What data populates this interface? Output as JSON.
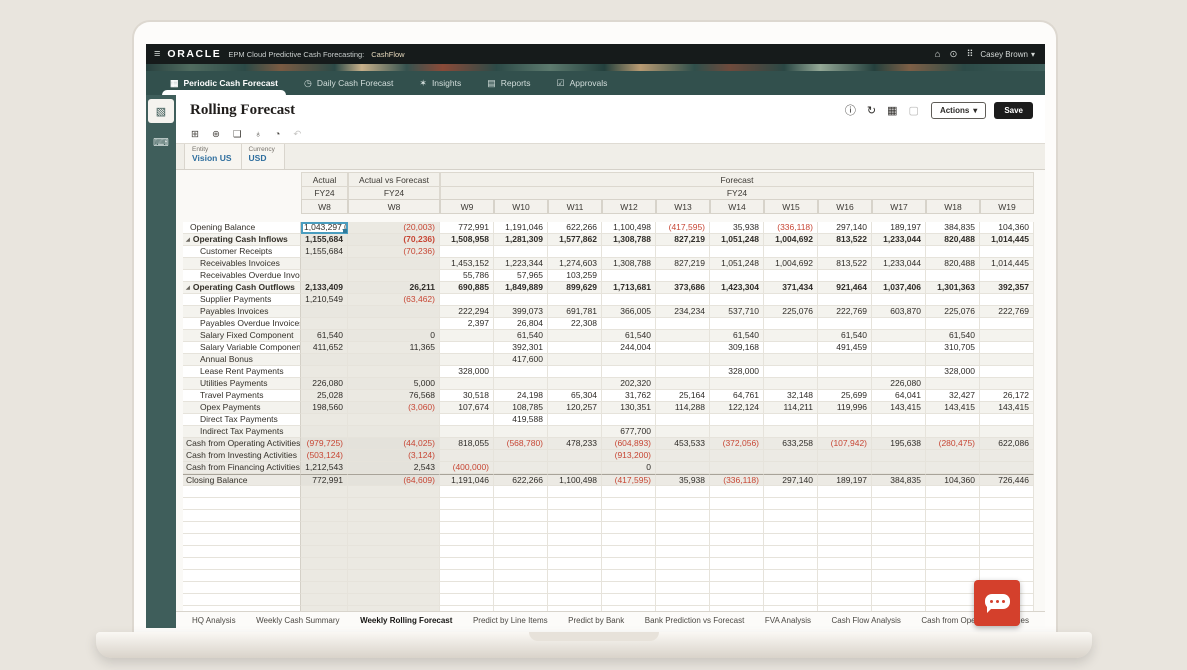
{
  "header": {
    "brand": "ORACLE",
    "product": "EPM Cloud Predictive Cash Forecasting:",
    "app": "CashFlow",
    "user": "Casey Brown",
    "icons": [
      {
        "name": "home-icon",
        "glyph": "⌂"
      },
      {
        "name": "assistant-icon",
        "glyph": "⊙"
      },
      {
        "name": "apps-waffle-icon",
        "glyph": "⠿"
      }
    ]
  },
  "icons": {
    "menu": "≡",
    "caret": "▾"
  },
  "nav": {
    "items": [
      {
        "label": "Periodic Cash Forecast",
        "icon": "▦",
        "icon_name": "periodic-cash-forecast-icon",
        "active": true
      },
      {
        "label": "Daily Cash Forecast",
        "icon": "◷",
        "icon_name": "daily-cash-forecast-icon",
        "active": false
      },
      {
        "label": "Insights",
        "icon": "✶",
        "icon_name": "insights-icon",
        "active": false
      },
      {
        "label": "Reports",
        "icon": "▤",
        "icon_name": "reports-icon",
        "active": false
      },
      {
        "label": "Approvals",
        "icon": "☑",
        "icon_name": "approvals-icon",
        "active": false
      }
    ]
  },
  "rail": {
    "items": [
      {
        "name": "forecast-workspace-icon",
        "icon": "▧",
        "active": true
      },
      {
        "name": "monitor-icon",
        "icon": "⌨",
        "active": false
      }
    ]
  },
  "page": {
    "title": "Rolling Forecast",
    "actions_label": "Actions",
    "save_label": "Save",
    "action_icons": [
      {
        "name": "info-icon",
        "glyph": "ⓘ",
        "disabled": false
      },
      {
        "name": "refresh-icon",
        "glyph": "↻",
        "disabled": false
      },
      {
        "name": "grid-inspect-icon",
        "glyph": "▦",
        "disabled": false
      },
      {
        "name": "detach-icon",
        "glyph": "▢",
        "disabled": true
      }
    ]
  },
  "toolbar": {
    "icons": [
      {
        "name": "grid-layout-icon",
        "glyph": "⊞",
        "disabled": false
      },
      {
        "name": "globe-icon",
        "glyph": "⊛",
        "disabled": false
      },
      {
        "name": "comment-icon",
        "glyph": "❑",
        "disabled": false
      },
      {
        "name": "sitemap-icon",
        "glyph": "♁",
        "disabled": false
      },
      {
        "name": "history-icon",
        "glyph": "◔",
        "disabled": false
      },
      {
        "name": "undo-icon",
        "glyph": "↶",
        "disabled": true
      }
    ]
  },
  "pov": {
    "entity_label": "Entity",
    "entity_value": "Vision US",
    "currency_label": "Currency",
    "currency_value": "USD"
  },
  "grid": {
    "groups": [
      {
        "label": "Actual",
        "span": 1
      },
      {
        "label": "Actual vs Forecast",
        "span": 1
      },
      {
        "label": "Forecast",
        "span": 11
      }
    ],
    "year": "FY24",
    "weeks": [
      "W8",
      "W8",
      "W9",
      "W10",
      "W11",
      "W12",
      "W13",
      "W14",
      "W15",
      "W16",
      "W17",
      "W18",
      "W19"
    ],
    "selected": {
      "row": 0,
      "col": 0
    },
    "empty_rows": 11,
    "rows": [
      {
        "label": "Opening Balance",
        "type": "normal",
        "values": [
          "1,043,297.0",
          "(20,003)",
          "772,991",
          "1,191,046",
          "622,266",
          "1,100,498",
          "(417,595)",
          "35,938",
          "(336,118)",
          "297,140",
          "189,197",
          "384,835",
          "104,360"
        ]
      },
      {
        "label": "Operating Cash Inflows",
        "type": "parent",
        "values": [
          "1,155,684",
          "(70,236)",
          "1,508,958",
          "1,281,309",
          "1,577,862",
          "1,308,788",
          "827,219",
          "1,051,248",
          "1,004,692",
          "813,522",
          "1,233,044",
          "820,488",
          "1,014,445"
        ]
      },
      {
        "label": "Customer Receipts",
        "type": "child",
        "values": [
          "1,155,684",
          "(70,236)",
          "",
          "",
          "",
          "",
          "",
          "",
          "",
          "",
          "",
          "",
          ""
        ]
      },
      {
        "label": "Receivables Invoices",
        "type": "child",
        "values": [
          "",
          "",
          "1,453,152",
          "1,223,344",
          "1,274,603",
          "1,308,788",
          "827,219",
          "1,051,248",
          "1,004,692",
          "813,522",
          "1,233,044",
          "820,488",
          "1,014,445"
        ]
      },
      {
        "label": "Receivables Overdue Invoices",
        "type": "child",
        "values": [
          "",
          "",
          "55,786",
          "57,965",
          "103,259",
          "",
          "",
          "",
          "",
          "",
          "",
          "",
          ""
        ]
      },
      {
        "label": "Operating Cash Outflows",
        "type": "parent",
        "values": [
          "2,133,409",
          "26,211",
          "690,885",
          "1,849,889",
          "899,629",
          "1,713,681",
          "373,686",
          "1,423,304",
          "371,434",
          "921,464",
          "1,037,406",
          "1,301,363",
          "392,357"
        ]
      },
      {
        "label": "Supplier Payments",
        "type": "child",
        "values": [
          "1,210,549",
          "(63,462)",
          "",
          "",
          "",
          "",
          "",
          "",
          "",
          "",
          "",
          "",
          ""
        ]
      },
      {
        "label": "Payables Invoices",
        "type": "child",
        "values": [
          "",
          "",
          "222,294",
          "399,073",
          "691,781",
          "366,005",
          "234,234",
          "537,710",
          "225,076",
          "222,769",
          "603,870",
          "225,076",
          "222,769"
        ]
      },
      {
        "label": "Payables Overdue Invoices",
        "type": "child",
        "values": [
          "",
          "",
          "2,397",
          "26,804",
          "22,308",
          "",
          "",
          "",
          "",
          "",
          "",
          "",
          ""
        ]
      },
      {
        "label": "Salary Fixed Component",
        "type": "child",
        "values": [
          "61,540",
          "0",
          "",
          "61,540",
          "",
          "61,540",
          "",
          "61,540",
          "",
          "61,540",
          "",
          "61,540",
          ""
        ]
      },
      {
        "label": "Salary Variable Component",
        "type": "child",
        "values": [
          "411,652",
          "11,365",
          "",
          "392,301",
          "",
          "244,004",
          "",
          "309,168",
          "",
          "491,459",
          "",
          "310,705",
          ""
        ]
      },
      {
        "label": "Annual Bonus",
        "type": "child",
        "values": [
          "",
          "",
          "",
          "417,600",
          "",
          "",
          "",
          "",
          "",
          "",
          "",
          "",
          ""
        ]
      },
      {
        "label": "Lease Rent Payments",
        "type": "child",
        "values": [
          "",
          "",
          "328,000",
          "",
          "",
          "",
          "",
          "328,000",
          "",
          "",
          "",
          "328,000",
          ""
        ]
      },
      {
        "label": "Utilities Payments",
        "type": "child",
        "values": [
          "226,080",
          "5,000",
          "",
          "",
          "",
          "202,320",
          "",
          "",
          "",
          "",
          "226,080",
          "",
          ""
        ]
      },
      {
        "label": "Travel Payments",
        "type": "child",
        "values": [
          "25,028",
          "76,568",
          "30,518",
          "24,198",
          "65,304",
          "31,762",
          "25,164",
          "64,761",
          "32,148",
          "25,699",
          "64,041",
          "32,427",
          "26,172"
        ]
      },
      {
        "label": "Opex Payments",
        "type": "child",
        "values": [
          "198,560",
          "(3,060)",
          "107,674",
          "108,785",
          "120,257",
          "130,351",
          "114,288",
          "122,124",
          "114,211",
          "119,996",
          "143,415",
          "143,415",
          "143,415"
        ]
      },
      {
        "label": "Direct Tax Payments",
        "type": "child",
        "values": [
          "",
          "",
          "",
          "419,588",
          "",
          "",
          "",
          "",
          "",
          "",
          "",
          "",
          ""
        ]
      },
      {
        "label": "Indirect Tax Payments",
        "type": "child",
        "values": [
          "",
          "",
          "",
          "",
          "",
          "677,700",
          "",
          "",
          "",
          "",
          "",
          "",
          ""
        ]
      },
      {
        "label": "Cash from Operating Activities",
        "type": "summary",
        "values": [
          "(979,725)",
          "(44,025)",
          "818,055",
          "(568,780)",
          "478,233",
          "(604,893)",
          "453,533",
          "(372,056)",
          "633,258",
          "(107,942)",
          "195,638",
          "(280,475)",
          "622,086"
        ]
      },
      {
        "label": "Cash from Investing Activities",
        "type": "summary",
        "values": [
          "(503,124)",
          "(3,124)",
          "",
          "",
          "",
          "(913,200)",
          "",
          "",
          "",
          "",
          "",
          "",
          ""
        ]
      },
      {
        "label": "Cash from Financing Activities",
        "type": "summary",
        "values": [
          "1,212,543",
          "2,543",
          "(400,000)",
          "",
          "",
          "0",
          "",
          "",
          "",
          "",
          "",
          "",
          ""
        ]
      },
      {
        "label": "Closing Balance",
        "type": "total",
        "values": [
          "772,991",
          "(64,609)",
          "1,191,046",
          "622,266",
          "1,100,498",
          "(417,595)",
          "35,938",
          "(336,118)",
          "297,140",
          "189,197",
          "384,835",
          "104,360",
          "726,446"
        ]
      }
    ]
  },
  "bottom_tabs": {
    "active": "Weekly Rolling Forecast",
    "items": [
      "HQ Analysis",
      "Weekly Cash Summary",
      "Weekly Rolling Forecast",
      "Predict by Line Items",
      "Predict by Bank",
      "Bank Prediction vs Forecast",
      "FVA Analysis",
      "Cash Flow Analysis",
      "Cash from Operating Activities"
    ]
  },
  "colors": {
    "negative": "#c74634",
    "chat": "#d4402c",
    "save_button": "#1c1c1c",
    "member_link": "#2e6e9e",
    "rail_teal": "#3f5e5b",
    "selection": "#4a9dbf"
  }
}
